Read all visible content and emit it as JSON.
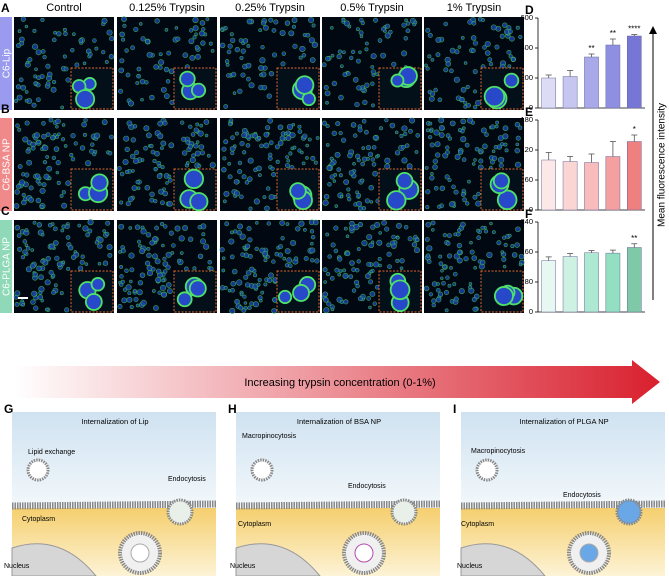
{
  "figure": {
    "columns": [
      "Control",
      "0.125% Trypsin",
      "0.25% Trypsin",
      "0.5% Trypsin",
      "1% Trypsin"
    ],
    "rows": [
      {
        "letter": "A",
        "label": "C6-Lip"
      },
      {
        "letter": "B",
        "label": "C6-BSA NP"
      },
      {
        "letter": "C",
        "label": "C6-PLGA NP"
      }
    ],
    "y_axis_label": "Mean  fluorescence intensity",
    "arrow_label": "Increasing trypsin concentration (0-1%)",
    "diagrams": [
      {
        "letter": "G",
        "title": "Internalization of Lip",
        "labels": [
          "Lipid exchange",
          "Endocytosis",
          "Cytoplasm",
          "Nucleus"
        ]
      },
      {
        "letter": "H",
        "title": "Internalization of BSA NP",
        "labels": [
          "Macropinocytosis",
          "Endocytosis",
          "Cytoplasm",
          "Nucleus"
        ]
      },
      {
        "letter": "I",
        "title": "Internalization of PLGA NP",
        "labels": [
          "Macropinocytosis",
          "Endocytosis",
          "Cytoplasm",
          "Nucleus"
        ]
      }
    ]
  },
  "chart_data": [
    {
      "type": "bar",
      "letter": "D",
      "values": [
        200,
        210,
        340,
        420,
        480
      ],
      "errors": [
        20,
        40,
        20,
        40,
        10
      ],
      "significance": [
        null,
        null,
        "**",
        "**",
        "****"
      ],
      "colors": [
        "#dcdcf6",
        "#c6c6f1",
        "#a9a9ea",
        "#8f8fe2",
        "#7676d6"
      ],
      "ylim": [
        0,
        600
      ],
      "yticks": [
        0,
        200,
        400,
        600
      ]
    },
    {
      "type": "bar",
      "letter": "E",
      "values": [
        100,
        97,
        95,
        107,
        137
      ],
      "errors": [
        15,
        10,
        17,
        30,
        13
      ],
      "significance": [
        null,
        null,
        null,
        null,
        "*"
      ],
      "colors": [
        "#fde8e8",
        "#fbd4d4",
        "#f8bcbc",
        "#f4a0a0",
        "#ef8080"
      ],
      "ylim": [
        0,
        180
      ],
      "yticks": [
        0,
        60,
        120,
        180
      ]
    },
    {
      "type": "bar",
      "letter": "F",
      "values": [
        137,
        148,
        158,
        157,
        172
      ],
      "errors": [
        10,
        8,
        6,
        8,
        10
      ],
      "significance": [
        null,
        null,
        null,
        null,
        "**"
      ],
      "colors": [
        "#e6f8f1",
        "#cdf1e3",
        "#ade8d2",
        "#93dfc2",
        "#7fc9a8"
      ],
      "ylim": [
        0,
        240
      ],
      "yticks": [
        0,
        80,
        160,
        240
      ]
    }
  ]
}
